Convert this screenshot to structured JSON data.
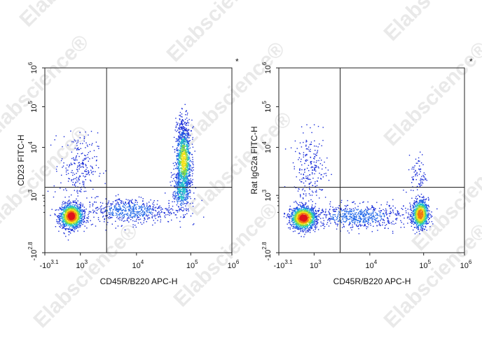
{
  "watermark": {
    "text": "Elabscience",
    "registered_mark": "®"
  },
  "chart_data": [
    {
      "type": "scatter",
      "subtype": "flow-cytometry-density-dot-plot",
      "panel": "left",
      "xlabel": "CD45R/B220 APC-H",
      "ylabel": "CD23 FITC-H",
      "annotation": "*",
      "x_scale": "biexponential",
      "y_scale": "biexponential",
      "xlim": [
        -1259,
        1000000
      ],
      "ylim": [
        -631,
        1000000
      ],
      "x_ticks": [
        {
          "base": "-10",
          "exp": "3.1"
        },
        {
          "base": "10",
          "exp": "3"
        },
        {
          "base": "10",
          "exp": "4"
        },
        {
          "base": "10",
          "exp": "5"
        },
        {
          "base": "10",
          "exp": "6"
        }
      ],
      "y_ticks": [
        {
          "base": "-10",
          "exp": "2.8"
        },
        {
          "base": "10",
          "exp": "3"
        },
        {
          "base": "10",
          "exp": "4"
        },
        {
          "base": "10",
          "exp": "5"
        },
        {
          "base": "10",
          "exp": "6"
        }
      ],
      "quadrant_gate": {
        "x": 3000,
        "y": 1500
      },
      "populations": [
        {
          "name": "B220-negative / CD23-negative",
          "center": [
            600,
            500
          ],
          "relative_size": "large"
        },
        {
          "name": "B220-negative / CD23-positive",
          "center": [
            700,
            5000
          ],
          "relative_size": "sparse"
        },
        {
          "name": "B220-intermediate bridge",
          "center": [
            10000,
            700
          ],
          "relative_size": "sparse"
        },
        {
          "name": "B220-positive / CD23-positive",
          "center": [
            75000,
            4500
          ],
          "relative_size": "large"
        },
        {
          "name": "B220-positive / CD23-negative",
          "center": [
            70000,
            900
          ],
          "relative_size": "medium"
        }
      ]
    },
    {
      "type": "scatter",
      "subtype": "flow-cytometry-density-dot-plot",
      "panel": "right",
      "xlabel": "CD45R/B220 APC-H",
      "ylabel": "Rat IgG2a FITC-H",
      "annotation": "*",
      "x_scale": "biexponential",
      "y_scale": "biexponential",
      "xlim": [
        -1259,
        1000000
      ],
      "ylim": [
        -631,
        1000000
      ],
      "x_ticks": [
        {
          "base": "-10",
          "exp": "3.1"
        },
        {
          "base": "10",
          "exp": "3"
        },
        {
          "base": "10",
          "exp": "4"
        },
        {
          "base": "10",
          "exp": "5"
        },
        {
          "base": "10",
          "exp": "6"
        }
      ],
      "y_ticks": [
        {
          "base": "-10",
          "exp": "2.8"
        },
        {
          "base": "10",
          "exp": "3"
        },
        {
          "base": "10",
          "exp": "4"
        },
        {
          "base": "10",
          "exp": "5"
        },
        {
          "base": "10",
          "exp": "6"
        }
      ],
      "quadrant_gate": {
        "x": 3000,
        "y": 1500
      },
      "populations": [
        {
          "name": "B220-negative / isotype-negative",
          "center": [
            600,
            500
          ],
          "relative_size": "large"
        },
        {
          "name": "B220-negative / isotype-low",
          "center": [
            700,
            4000
          ],
          "relative_size": "sparse"
        },
        {
          "name": "B220-intermediate bridge",
          "center": [
            10000,
            550
          ],
          "relative_size": "sparse"
        },
        {
          "name": "B220-positive / isotype-negative",
          "center": [
            75000,
            550
          ],
          "relative_size": "large"
        }
      ]
    }
  ]
}
